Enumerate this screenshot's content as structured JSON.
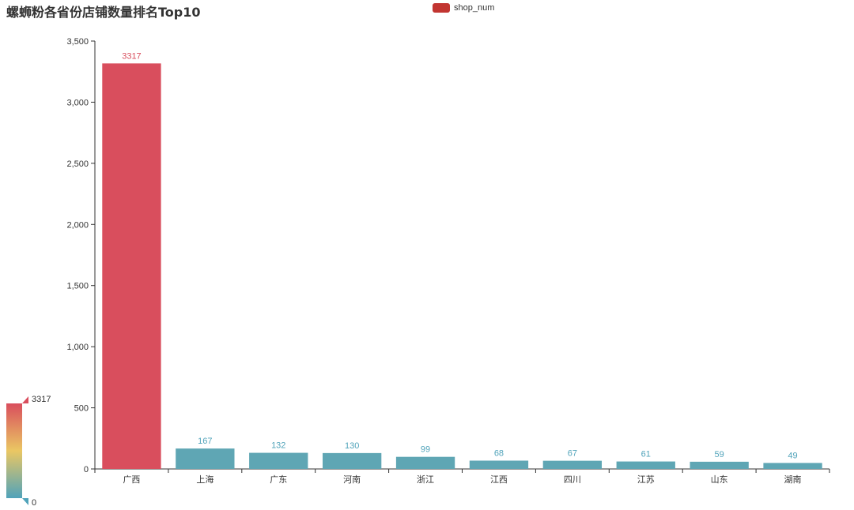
{
  "chart_data": {
    "type": "bar",
    "title": "螺蛳粉各省份店铺数量排名Top10",
    "categories": [
      "广西",
      "上海",
      "广东",
      "河南",
      "浙江",
      "江西",
      "四川",
      "江苏",
      "山东",
      "湖南"
    ],
    "series": [
      {
        "name": "shop_num",
        "values": [
          3317,
          167,
          132,
          130,
          99,
          68,
          67,
          61,
          59,
          49
        ]
      }
    ],
    "ylim": [
      0,
      3500
    ],
    "yticks": [
      0,
      500,
      1000,
      1500,
      2000,
      2500,
      3000,
      3500
    ],
    "ytick_labels": [
      "0",
      "500",
      "1,000",
      "1,500",
      "2,000",
      "2,500",
      "3,000",
      "3,500"
    ],
    "grid": false,
    "legend_position": "top-center",
    "visual_map": {
      "min": 0,
      "max": 3317,
      "max_label": "3317",
      "min_label": "0",
      "colors": [
        "#50a3ba",
        "#eac763",
        "#d94e5d"
      ]
    },
    "colors": {
      "legend": "#c23531",
      "high": "#d94e5d",
      "low": "#5fa6b4",
      "label_high": "#d94e5d",
      "label_low": "#50a3ba"
    }
  }
}
